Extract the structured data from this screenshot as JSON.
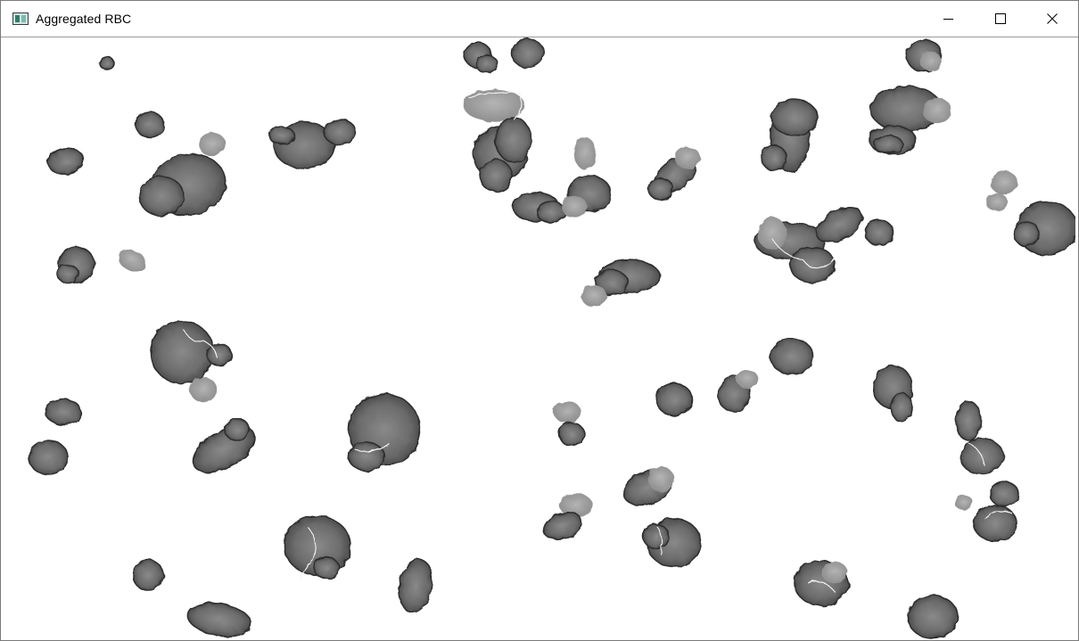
{
  "window": {
    "title": "Aggregated RBC",
    "icon": "app-icon",
    "controls": [
      {
        "name": "minimize",
        "icon": "minimize-icon"
      },
      {
        "name": "maximize",
        "icon": "maximize-icon"
      },
      {
        "name": "close",
        "icon": "close-icon"
      }
    ]
  },
  "image": {
    "content": "microscopy-cells",
    "colors": {
      "cell_dark": "#3c3c3c",
      "cell_mid": "#777777",
      "cell_light": "#a6a6a6",
      "background": "#ffffff"
    }
  }
}
